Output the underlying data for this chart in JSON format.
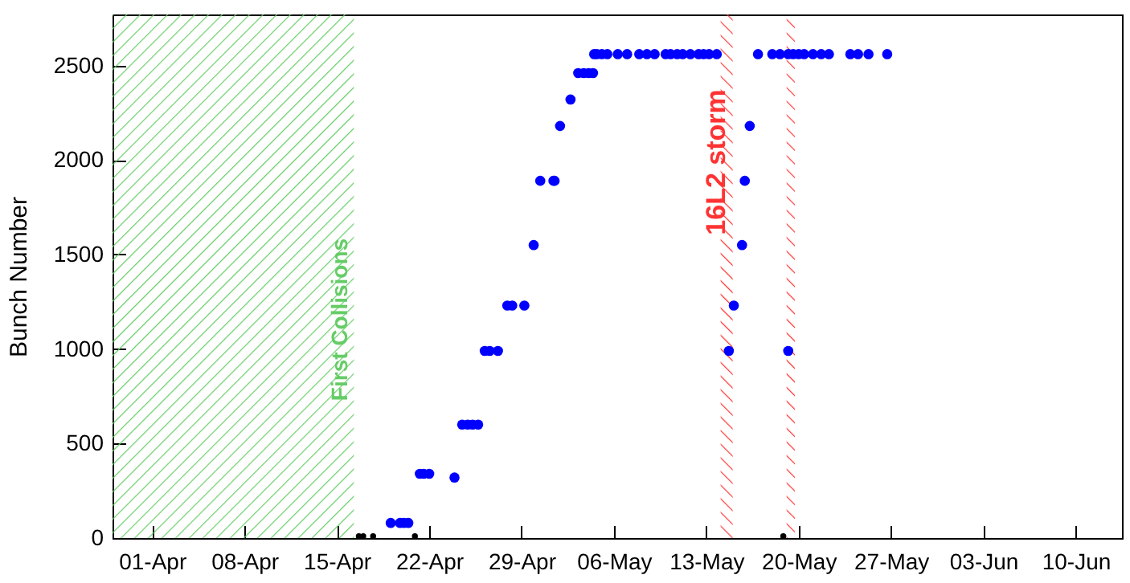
{
  "chart_data": {
    "type": "scatter",
    "ylabel": "Bunch Number",
    "xlim": [
      "--03-29",
      "--06-13T12:00"
    ],
    "ylim": [
      0,
      2770
    ],
    "xticks": [
      {
        "value": "--04-01",
        "label": "01-Apr"
      },
      {
        "value": "--04-08",
        "label": "08-Apr"
      },
      {
        "value": "--04-15",
        "label": "15-Apr"
      },
      {
        "value": "--04-22",
        "label": "22-Apr"
      },
      {
        "value": "--04-29",
        "label": "29-Apr"
      },
      {
        "value": "--05-06",
        "label": "06-May"
      },
      {
        "value": "--05-13",
        "label": "13-May"
      },
      {
        "value": "--05-20",
        "label": "20-May"
      },
      {
        "value": "--05-27",
        "label": "27-May"
      },
      {
        "value": "--06-03",
        "label": "03-Jun"
      },
      {
        "value": "--06-10",
        "label": "10-Jun"
      }
    ],
    "yticks": [
      0,
      500,
      1000,
      1500,
      2000,
      2500
    ],
    "marker": "circle",
    "grid": false,
    "series": [
      {
        "color": "#0000ff",
        "x": [
          "--04-19T02:00",
          "--04-19T19:00",
          "--04-20T02:00",
          "--04-20T10:00",
          "--04-21T07:00",
          "--04-21T14:00",
          "--04-22T00:00",
          "--04-23T22:00",
          "--04-24T12:00",
          "--04-24T22:00",
          "--04-25T07:00",
          "--04-25T17:00",
          "--04-26T05:00",
          "--04-26T14:00",
          "--04-27T05:00",
          "--04-27T22:00",
          "--04-28T07:00",
          "--04-29T05:00",
          "--04-29T22:00",
          "--04-30T10:00",
          "--05-01T10:00",
          "--05-01T12:00",
          "--05-01T22:00",
          "--05-02T17:00",
          "--05-03T07:00",
          "--05-03T17:00",
          "--05-04T02:00",
          "--05-04T10:00",
          "--05-04T12:00",
          "--05-04T17:00",
          "--05-05T02:00",
          "--05-05T12:00",
          "--05-06T07:00",
          "--05-07T00:00",
          "--05-07T22:00",
          "--05-08T12:00",
          "--05-09T02:00",
          "--05-09T22:00",
          "--05-10T07:00",
          "--05-10T19:00",
          "--05-11T05:00",
          "--05-11T19:00",
          "--05-12T10:00",
          "--05-12T19:00",
          "--05-13T05:00",
          "--05-13T19:00",
          "--05-14T17:00",
          "--05-15T02:00",
          "--05-15T17:00",
          "--05-15T22:00",
          "--05-16T07:00",
          "--05-16T22:00",
          "--05-18T00:00",
          "--05-18T14:00",
          "--05-19T05:00",
          "--05-19T05:00",
          "--05-19T14:00",
          "--05-20T00:00",
          "--05-20T10:00",
          "--05-21T02:00",
          "--05-21T17:00",
          "--05-22T07:00",
          "--05-23T22:00",
          "--05-24T12:00",
          "--05-25T07:00",
          "--05-26T17:00"
        ],
        "values": [
          80,
          80,
          80,
          80,
          340,
          340,
          340,
          320,
          600,
          600,
          600,
          600,
          990,
          990,
          990,
          1230,
          1230,
          1230,
          1550,
          1890,
          1890,
          1890,
          2180,
          2320,
          2460,
          2460,
          2460,
          2460,
          2560,
          2560,
          2560,
          2560,
          2560,
          2560,
          2560,
          2560,
          2560,
          2560,
          2560,
          2560,
          2560,
          2560,
          2560,
          2560,
          2560,
          2560,
          990,
          1230,
          1550,
          1890,
          2180,
          2560,
          2560,
          2560,
          2560,
          990,
          2560,
          2560,
          2560,
          2560,
          2560,
          2560,
          2560,
          2560,
          2560,
          2560
        ]
      },
      {
        "color": "#000000",
        "x": [
          "--04-16T16:00",
          "--04-17T00:00",
          "--04-17T18:00",
          "--04-20T22:00",
          "--05-18T20:00"
        ],
        "values": [
          10,
          10,
          10,
          10,
          10
        ]
      }
    ],
    "bands": [
      {
        "axis": "x",
        "from": "--03-29",
        "to": "--04-16T07:00",
        "label": "First Collisions",
        "color": "#66cc66"
      },
      {
        "axis": "x",
        "from": "--05-14T02:00",
        "to": "--05-15T00:00",
        "label": "16L2 storm",
        "color": "#ff3333"
      },
      {
        "axis": "x",
        "from": "--05-19T02:00",
        "to": "--05-19T17:00",
        "label": null,
        "color": "#ff3333"
      }
    ]
  }
}
